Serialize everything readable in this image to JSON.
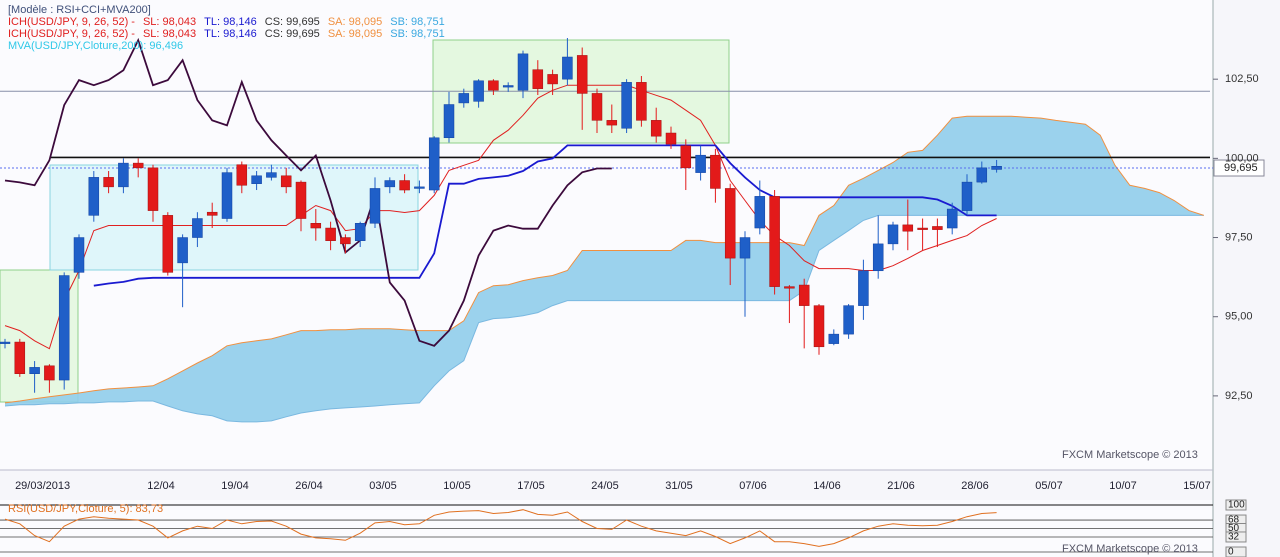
{
  "chart_data": [
    {
      "type": "candlestick",
      "legend_lines": [
        [
          {
            "text": "[Modèle : RSI+CCI+MVA200]",
            "color": "#40507a"
          }
        ],
        [
          {
            "text": "ICH(USD/JPY, 9, 26, 52) -",
            "color": "#e02020"
          },
          {
            "text": "SL: 98,043",
            "color": "#e02020"
          },
          {
            "text": "TL: 98,146",
            "color": "#1a1ad0"
          },
          {
            "text": "CS: 99,695",
            "color": "#333333"
          },
          {
            "text": "SA: 98,095",
            "color": "#f09040"
          },
          {
            "text": "SB: 98,751",
            "color": "#3aa8e0"
          }
        ],
        [
          {
            "text": "ICH(USD/JPY, 9, 26, 52) -",
            "color": "#e02020"
          },
          {
            "text": "SL: 98,043",
            "color": "#e02020"
          },
          {
            "text": "TL: 98,146",
            "color": "#1a1ad0"
          },
          {
            "text": "CS: 99,695",
            "color": "#333333"
          },
          {
            "text": "SA: 98,095",
            "color": "#f09040"
          },
          {
            "text": "SB: 98,751",
            "color": "#3aa8e0"
          }
        ],
        [
          {
            "text": "MVA(USD/JPY,Cloture,200): 96,496",
            "color": "#30c8e8"
          }
        ]
      ],
      "categories": [
        null,
        null,
        "29/03/2013",
        null,
        null,
        null,
        null,
        null,
        null,
        null,
        "12/04",
        null,
        null,
        null,
        null,
        "19/04",
        null,
        null,
        null,
        null,
        "26/04",
        null,
        null,
        null,
        null,
        "03/05",
        null,
        null,
        null,
        null,
        "10/05",
        null,
        null,
        null,
        null,
        "17/05",
        null,
        null,
        null,
        null,
        "24/05",
        null,
        null,
        null,
        null,
        "31/05",
        null,
        null,
        null,
        null,
        "07/06",
        null,
        null,
        null,
        null,
        "14/06",
        null,
        null,
        null,
        null,
        "21/06",
        null,
        null,
        null,
        null,
        "28/06",
        null,
        null,
        null,
        null,
        "05/07",
        null,
        null,
        null,
        null,
        "10/07",
        null,
        null,
        null,
        null,
        "15/07",
        null
      ],
      "open": [
        94.15,
        94.2,
        93.2,
        93.45,
        93.0,
        96.4,
        98.2,
        99.4,
        99.1,
        99.85,
        99.7,
        98.2,
        96.7,
        97.5,
        98.3,
        98.1,
        99.8,
        99.2,
        99.4,
        99.45,
        99.25,
        97.95,
        97.8,
        97.5,
        97.4,
        97.95,
        99.1,
        99.3,
        99.05,
        99.0,
        100.65,
        101.75,
        101.8,
        102.45,
        102.25,
        102.15,
        102.8,
        102.65,
        102.5,
        103.25,
        102.05,
        101.2,
        100.95,
        102.4,
        101.2,
        100.8,
        100.4,
        99.55,
        100.1,
        99.05,
        96.85,
        97.8,
        98.8,
        95.95,
        96.0,
        95.35,
        94.15,
        94.45,
        95.35,
        96.45,
        97.3,
        97.9,
        97.8,
        97.85,
        97.8,
        98.35,
        99.25,
        99.65,
        null,
        null,
        null,
        null,
        null,
        null,
        null,
        null,
        null,
        null,
        null,
        null,
        null,
        null
      ],
      "high": [
        94.3,
        94.3,
        93.6,
        93.5,
        96.4,
        97.6,
        99.6,
        99.6,
        100.0,
        100.0,
        99.8,
        98.3,
        97.6,
        98.3,
        98.6,
        99.7,
        99.9,
        99.6,
        99.8,
        99.7,
        99.3,
        98.4,
        98.0,
        97.6,
        98.0,
        99.4,
        99.4,
        99.5,
        99.3,
        100.7,
        102.1,
        102.2,
        102.5,
        102.5,
        102.4,
        103.4,
        103.1,
        102.8,
        103.8,
        103.5,
        102.2,
        101.7,
        102.5,
        102.6,
        101.6,
        101.0,
        100.6,
        100.4,
        100.3,
        99.2,
        97.7,
        99.3,
        99.0,
        96.0,
        96.2,
        95.4,
        94.6,
        95.4,
        96.8,
        98.2,
        98.0,
        98.7,
        98.1,
        98.1,
        98.6,
        99.5,
        99.9,
        99.95,
        null,
        null,
        null,
        null,
        null,
        null,
        null,
        null,
        null,
        null,
        null,
        null,
        null,
        null
      ],
      "low": [
        94.0,
        93.1,
        92.6,
        92.6,
        92.7,
        96.2,
        98.0,
        98.9,
        98.9,
        99.4,
        98.0,
        96.3,
        95.3,
        97.2,
        97.8,
        98.0,
        98.9,
        99.0,
        99.3,
        98.9,
        97.7,
        97.4,
        97.1,
        97.0,
        97.2,
        97.8,
        98.9,
        98.9,
        98.9,
        98.9,
        100.5,
        101.6,
        101.6,
        102.0,
        102.1,
        101.9,
        102.0,
        102.0,
        102.3,
        100.9,
        100.8,
        100.8,
        100.8,
        101.0,
        100.5,
        100.3,
        99.0,
        99.3,
        98.6,
        96.0,
        95.0,
        97.6,
        95.7,
        94.8,
        94.0,
        93.8,
        94.1,
        94.3,
        94.9,
        96.2,
        97.1,
        97.1,
        97.1,
        97.2,
        97.6,
        98.2,
        99.2,
        99.55,
        null,
        null,
        null,
        null,
        null,
        null,
        null,
        null,
        null,
        null,
        null,
        null,
        null,
        null
      ],
      "close": [
        94.2,
        93.2,
        93.4,
        93.0,
        96.3,
        97.5,
        99.4,
        99.1,
        99.85,
        99.7,
        98.35,
        96.4,
        97.5,
        98.1,
        98.2,
        99.55,
        99.15,
        99.45,
        99.55,
        99.1,
        98.1,
        97.8,
        97.4,
        97.3,
        97.95,
        99.05,
        99.3,
        99.0,
        99.1,
        100.65,
        101.7,
        102.05,
        102.45,
        102.15,
        102.3,
        103.3,
        102.2,
        102.35,
        103.2,
        102.05,
        101.2,
        101.05,
        102.4,
        101.2,
        100.7,
        100.45,
        99.7,
        100.1,
        99.05,
        96.85,
        97.5,
        98.8,
        95.95,
        95.9,
        95.35,
        94.05,
        94.45,
        95.35,
        96.45,
        97.3,
        97.9,
        97.7,
        97.75,
        97.75,
        98.4,
        99.25,
        99.7,
        99.75,
        null,
        null,
        null,
        null,
        null,
        null,
        null,
        null,
        null,
        null,
        null,
        null,
        null,
        null
      ],
      "up_color": "#1f5fc8",
      "down_color": "#e31a1a",
      "cloud": {
        "fill": "#90cdeb",
        "color_a": "#f09040",
        "color_b": "#7ab8e0",
        "span_a": [
          92.28,
          92.34,
          92.41,
          92.47,
          92.53,
          92.59,
          92.66,
          92.72,
          92.75,
          92.78,
          92.82,
          93.04,
          93.29,
          93.54,
          93.77,
          94.08,
          94.18,
          94.24,
          94.3,
          94.43,
          94.56,
          94.56,
          94.59,
          94.59,
          94.62,
          94.62,
          94.62,
          94.59,
          94.56,
          94.56,
          94.56,
          94.87,
          95.76,
          95.98,
          96.01,
          96.14,
          96.23,
          96.3,
          96.46,
          97.09,
          97.09,
          97.09,
          97.09,
          97.09,
          97.09,
          97.09,
          97.41,
          97.41,
          97.34,
          97.34,
          97.34,
          97.34,
          97.34,
          97.34,
          97.25,
          98.2,
          98.51,
          99.15,
          99.37,
          99.62,
          99.87,
          100.19,
          100.25,
          100.73,
          101.27,
          101.33,
          101.33,
          101.33,
          101.33,
          101.3,
          101.27,
          101.2,
          101.14,
          101.08,
          100.73,
          99.78,
          99.15,
          99.05,
          98.92,
          98.67,
          98.35,
          98.2
        ],
        "span_b": [
          92.18,
          92.22,
          92.22,
          92.25,
          92.25,
          92.28,
          92.28,
          92.31,
          92.31,
          92.34,
          92.34,
          92.18,
          92.03,
          91.93,
          91.87,
          91.71,
          91.68,
          91.68,
          91.71,
          91.84,
          91.96,
          92.03,
          92.09,
          92.12,
          92.15,
          92.18,
          92.22,
          92.25,
          92.28,
          92.82,
          93.29,
          93.61,
          94.81,
          94.94,
          94.97,
          95.03,
          95.13,
          95.35,
          95.51,
          95.51,
          95.51,
          95.51,
          95.51,
          95.51,
          95.51,
          95.51,
          95.51,
          95.51,
          95.51,
          95.51,
          95.51,
          95.51,
          95.51,
          95.51,
          95.82,
          97.09,
          97.41,
          97.72,
          98.04,
          98.2,
          98.2,
          98.2,
          98.2,
          98.2,
          98.2,
          98.2,
          98.2,
          98.2,
          98.2,
          98.2,
          98.2,
          98.2,
          98.2,
          98.2,
          98.2,
          98.2,
          98.2,
          98.2,
          98.2,
          98.2,
          98.2,
          98.2
        ]
      },
      "series": [
        {
          "color": "#e02020",
          "width": 1,
          "values": [
            94.72,
            94.56,
            94.24,
            93.99,
            95.51,
            96.46,
            97.72,
            97.88,
            97.88,
            97.88,
            97.88,
            97.88,
            97.88,
            97.88,
            97.88,
            97.88,
            97.88,
            97.88,
            97.88,
            97.88,
            98.2,
            98.51,
            98.35,
            97.72,
            97.78,
            98.35,
            98.35,
            98.29,
            98.35,
            98.83,
            99.62,
            99.78,
            99.94,
            100.57,
            100.89,
            101.36,
            101.9,
            102.15,
            102.31,
            102.31,
            102.31,
            102.31,
            102.31,
            102.15,
            101.99,
            101.84,
            101.52,
            101.2,
            100.41,
            99.3,
            98.67,
            98.04,
            97.56,
            97.25,
            96.77,
            96.52,
            96.52,
            96.52,
            96.46,
            96.46,
            96.61,
            96.84,
            97.09,
            97.25,
            97.41,
            97.56,
            97.88,
            98.1,
            null,
            null,
            null,
            null,
            null,
            null,
            null,
            null,
            null,
            null,
            null,
            null,
            null,
            null
          ]
        },
        {
          "color": "#1a1ad0",
          "width": 1.8,
          "values": [
            null,
            null,
            null,
            null,
            null,
            null,
            95.98,
            96.05,
            96.1,
            96.2,
            96.23,
            96.23,
            96.23,
            96.23,
            96.23,
            96.23,
            96.23,
            96.23,
            96.23,
            96.23,
            96.23,
            96.23,
            96.23,
            96.23,
            96.23,
            96.23,
            96.23,
            96.23,
            96.23,
            97.0,
            99.2,
            99.2,
            99.35,
            99.4,
            99.45,
            99.6,
            99.9,
            100.0,
            100.41,
            100.41,
            100.41,
            100.41,
            100.41,
            100.41,
            100.41,
            100.41,
            100.41,
            100.41,
            100.41,
            99.85,
            99.4,
            99.0,
            98.77,
            98.77,
            98.77,
            98.77,
            98.77,
            98.77,
            98.77,
            98.77,
            98.77,
            98.77,
            98.77,
            98.7,
            98.5,
            98.2,
            98.2,
            98.2,
            null,
            null,
            null,
            null,
            null,
            null,
            null,
            null,
            null,
            null,
            null,
            null,
            null,
            null
          ]
        },
        {
          "color": "#3c0a3c",
          "width": 1.8,
          "values": [
            99.3,
            99.24,
            99.15,
            99.94,
            101.68,
            102.47,
            102.31,
            102.47,
            102.78,
            103.73,
            102.31,
            102.47,
            103.1,
            101.84,
            101.2,
            101.04,
            102.41,
            101.2,
            100.57,
            100.09,
            99.62,
            100.09,
            98.67,
            97.03,
            97.41,
            98.83,
            96.08,
            95.51,
            94.24,
            94.08,
            94.56,
            95.51,
            96.93,
            97.72,
            97.88,
            97.78,
            97.78,
            98.51,
            99.15,
            99.56,
            99.68,
            99.68,
            null,
            null,
            null,
            null,
            null,
            null,
            null,
            null,
            null,
            null,
            null,
            null,
            null,
            null,
            null,
            null,
            null,
            null,
            null,
            null,
            null,
            null,
            null,
            null,
            null,
            null,
            null,
            null,
            null,
            null,
            null,
            null,
            null,
            null,
            null,
            null,
            null,
            null,
            null,
            null
          ]
        }
      ],
      "levels": [
        {
          "value": 102.12,
          "color": "#8890a8"
        },
        {
          "value": 100.03,
          "color": "#111111"
        }
      ],
      "last_price": {
        "value": 99.695,
        "label": "99,695",
        "color": "#5a6cf0"
      },
      "ylim": [
        90.16,
        105.0
      ],
      "yticks": [
        {
          "value": 102.5,
          "label": "102,50"
        },
        {
          "value": 100,
          "label": "100,00"
        },
        {
          "value": 97.5,
          "label": "97,50"
        },
        {
          "value": 95,
          "label": "95,00"
        },
        {
          "value": 92.5,
          "label": "92,50"
        }
      ],
      "watermark": "FXCM Marketscope © 2013"
    },
    {
      "type": "line",
      "title": "RSI(USD/JPY,Cloture, 5): 83,73",
      "color": "#e07020",
      "values": [
        70,
        60,
        35,
        22,
        55,
        70,
        75,
        72,
        70,
        68,
        55,
        30,
        45,
        55,
        50,
        68,
        60,
        65,
        66,
        55,
        38,
        30,
        28,
        25,
        40,
        62,
        65,
        58,
        60,
        78,
        85,
        87,
        88,
        82,
        84,
        90,
        80,
        78,
        85,
        65,
        50,
        48,
        68,
        55,
        45,
        40,
        35,
        45,
        33,
        18,
        30,
        45,
        22,
        22,
        18,
        12,
        18,
        30,
        45,
        55,
        60,
        57,
        56,
        57,
        65,
        75,
        82,
        83.73,
        null,
        null,
        null,
        null,
        null,
        null,
        null,
        null,
        null,
        null,
        null,
        null,
        null,
        null
      ],
      "ylim": [
        -10.6,
        117
      ],
      "yticks": [
        100,
        68,
        50,
        32,
        0
      ],
      "watermark": "FXCM Marketscope © 2013"
    }
  ]
}
